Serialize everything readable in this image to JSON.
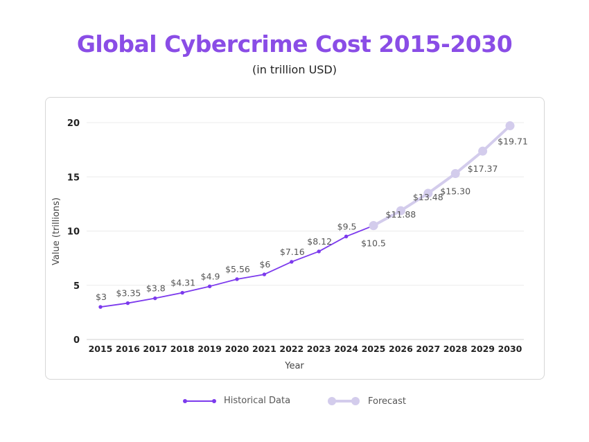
{
  "title": "Global Cybercrime Cost 2015-2030",
  "subtitle": "(in trillion USD)",
  "colors": {
    "historical": "#7c3aed",
    "forecast": "#d3ccec",
    "title": "#8a4de6",
    "grid": "#ebebeb"
  },
  "chart_data": {
    "type": "line",
    "title": "Global Cybercrime Cost 2015-2030",
    "subtitle": "(in trillion USD)",
    "xlabel": "Year",
    "ylabel": "Value  (trillions)",
    "ylim": [
      0,
      20
    ],
    "yticks": [
      0,
      5,
      10,
      15,
      20
    ],
    "categories": [
      "2015",
      "2016",
      "2017",
      "2018",
      "2019",
      "2020",
      "2021",
      "2022",
      "2023",
      "2024",
      "2025",
      "2026",
      "2027",
      "2028",
      "2029",
      "2030"
    ],
    "grid": true,
    "legend_position": "bottom",
    "series": [
      {
        "name": "Historical Data",
        "x": [
          "2015",
          "2016",
          "2017",
          "2018",
          "2019",
          "2020",
          "2021",
          "2022",
          "2023",
          "2024",
          "2025"
        ],
        "values": [
          3,
          3.35,
          3.8,
          4.31,
          4.9,
          5.56,
          6,
          7.16,
          8.12,
          9.5,
          10.5
        ],
        "labels": [
          "$3",
          "$3.35",
          "$3.8",
          "$4.31",
          "$4.9",
          "$5.56",
          "$6",
          "$7.16",
          "$8.12",
          "$9.5",
          ""
        ]
      },
      {
        "name": "Forecast",
        "x": [
          "2025",
          "2026",
          "2027",
          "2028",
          "2029",
          "2030"
        ],
        "values": [
          10.5,
          11.88,
          13.48,
          15.3,
          17.37,
          19.71
        ],
        "labels": [
          "$10.5",
          "$11.88",
          "$13.48",
          "$15.30",
          "$17.37",
          "$19.71"
        ]
      }
    ]
  }
}
